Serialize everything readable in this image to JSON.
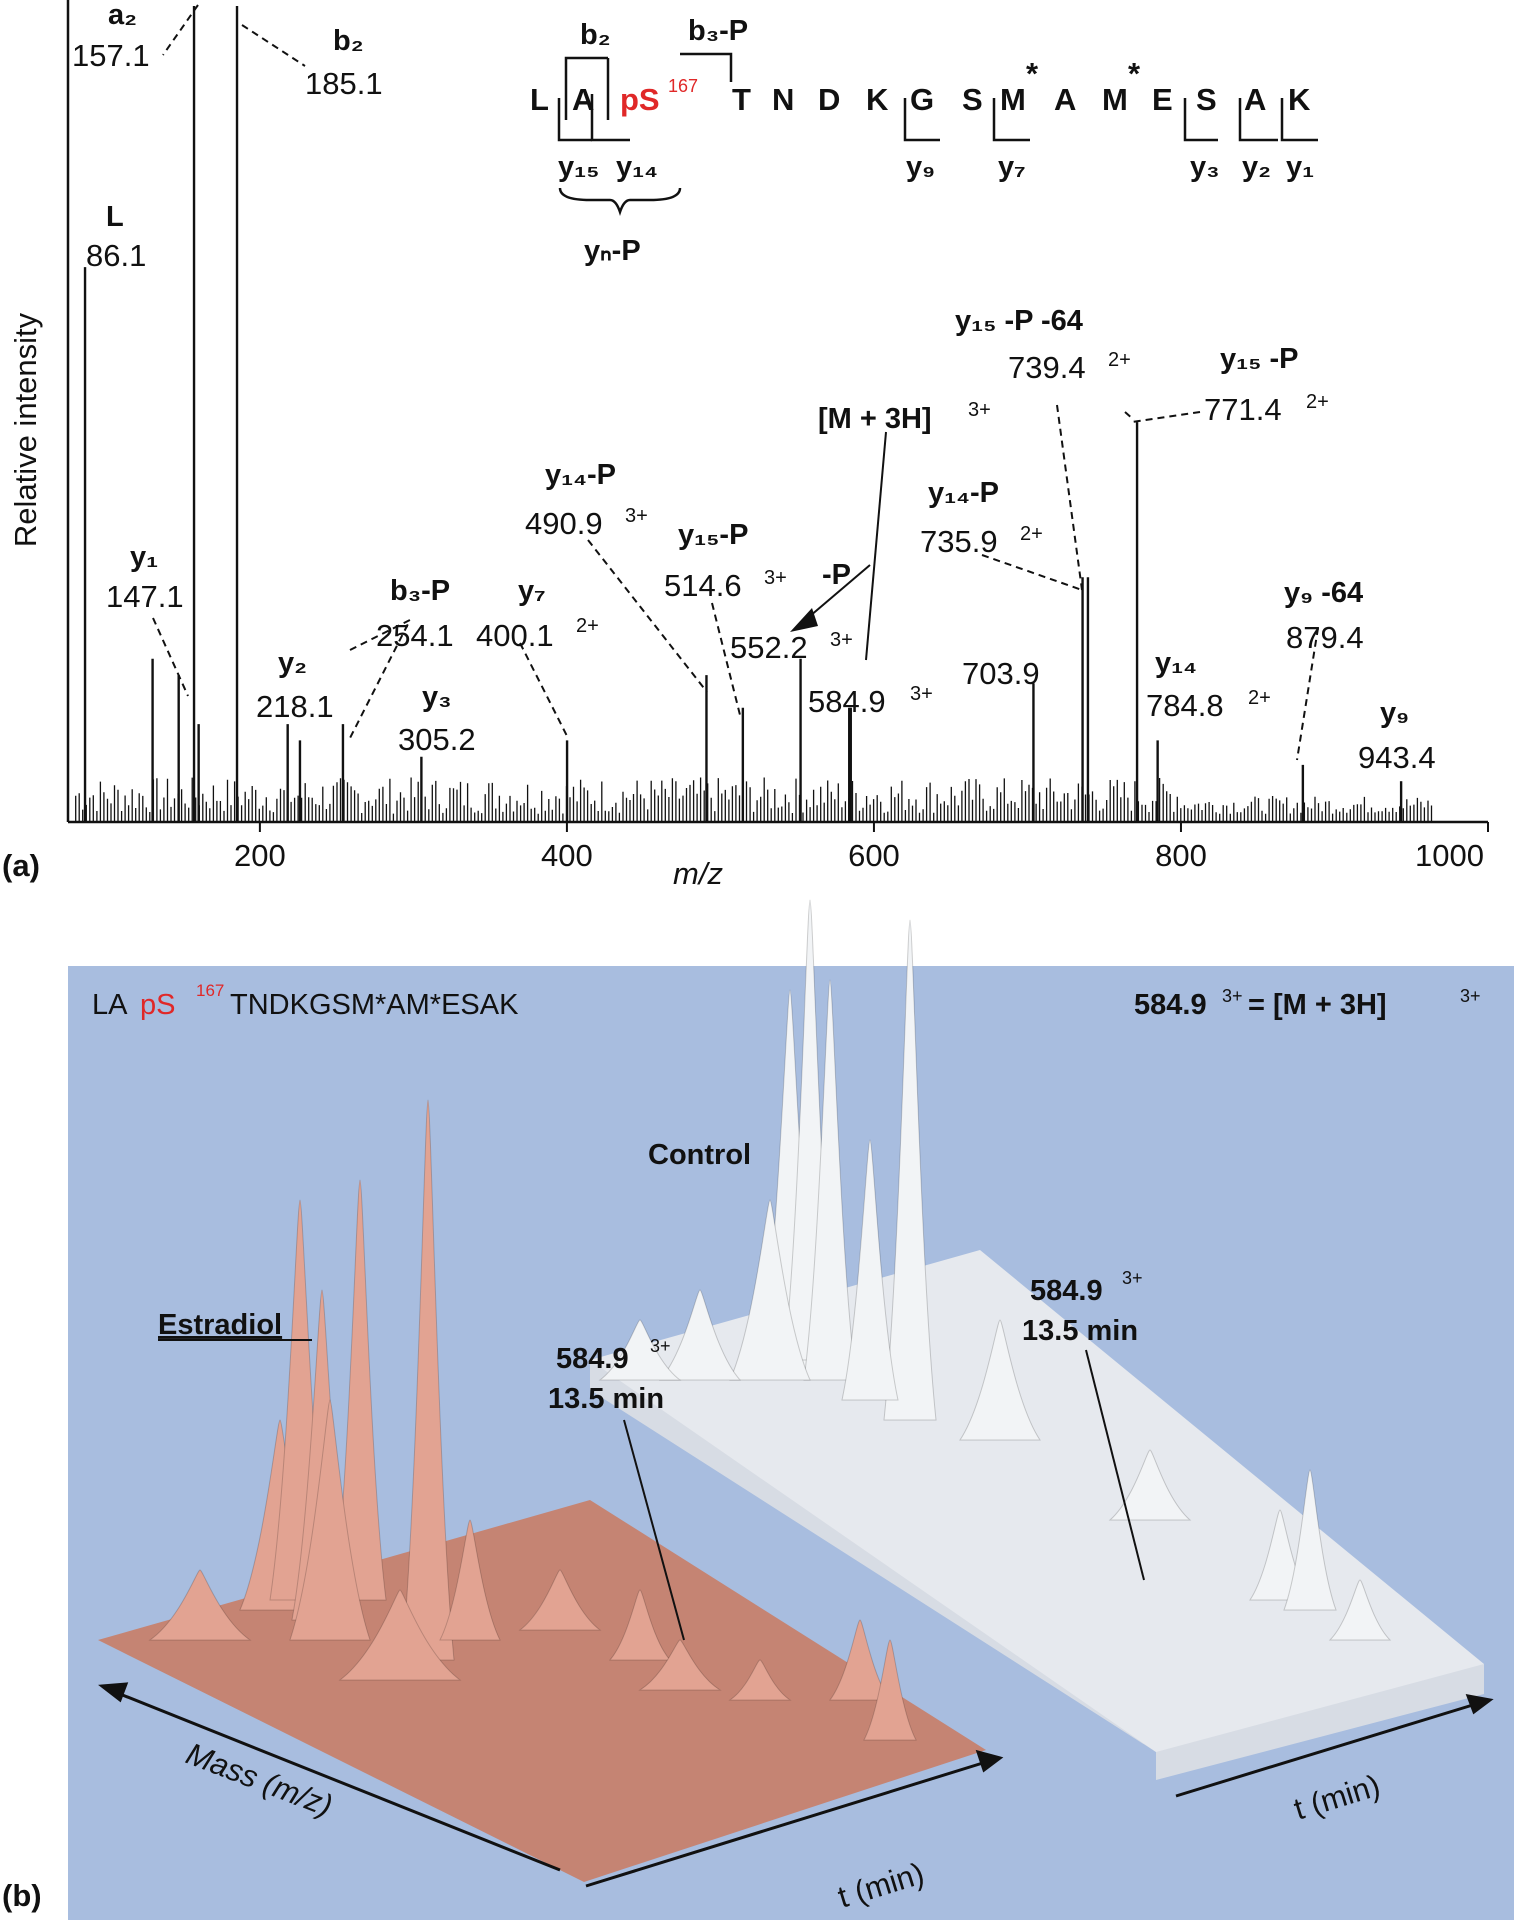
{
  "panels": [
    {
      "label": "(a)"
    },
    {
      "label": "(b)"
    }
  ],
  "chart_data": [
    {
      "type": "bar",
      "xlabel": "m/z",
      "ylabel": "Relative intensity",
      "xlim": [
        75,
        1000
      ],
      "ylim": [
        0,
        100
      ],
      "x_ticks": [
        200,
        400,
        600,
        800,
        1000
      ],
      "grid": false,
      "series": [
        {
          "values": [
            {
              "x": 86.1,
              "y": 68
            },
            {
              "x": 130.1,
              "y": 20
            },
            {
              "x": 147.1,
              "y": 18
            },
            {
              "x": 157.1,
              "y": 100
            },
            {
              "x": 160.1,
              "y": 12
            },
            {
              "x": 185.1,
              "y": 100
            },
            {
              "x": 218.1,
              "y": 12
            },
            {
              "x": 226.1,
              "y": 10
            },
            {
              "x": 254.1,
              "y": 12
            },
            {
              "x": 305.2,
              "y": 8
            },
            {
              "x": 400.1,
              "y": 10
            },
            {
              "x": 490.9,
              "y": 18
            },
            {
              "x": 514.6,
              "y": 14
            },
            {
              "x": 552.2,
              "y": 20
            },
            {
              "x": 583.9,
              "y": 14
            },
            {
              "x": 584.9,
              "y": 14
            },
            {
              "x": 703.9,
              "y": 17
            },
            {
              "x": 735.9,
              "y": 30
            },
            {
              "x": 739.4,
              "y": 30
            },
            {
              "x": 771.4,
              "y": 49
            },
            {
              "x": 784.8,
              "y": 10
            },
            {
              "x": 879.4,
              "y": 7
            },
            {
              "x": 943.4,
              "y": 5
            }
          ]
        }
      ],
      "peak_labels": [
        {
          "ion": "a₂",
          "mz": "157.1",
          "x": 157.1
        },
        {
          "ion": "b₂",
          "mz": "185.1",
          "x": 185.1
        },
        {
          "ion": "L",
          "mz": "86.1",
          "x": 86.1
        },
        {
          "ion": "y₁",
          "mz": "147.1",
          "x": 147.1
        },
        {
          "ion": "y₂",
          "mz": "218.1",
          "x": 218.1
        },
        {
          "ion": "b₃-P",
          "mz": "254.1",
          "x": 254.1
        },
        {
          "ion": "y₃",
          "mz": "305.2",
          "x": 305.2
        },
        {
          "ion": "y₇",
          "mz": "400.1",
          "charge": "2+",
          "x": 400.1
        },
        {
          "ion": "y₁₄-P",
          "mz": "490.9",
          "charge": "3+",
          "x": 490.9
        },
        {
          "ion": "y₁₅-P",
          "mz": "514.6",
          "charge": "3+",
          "x": 514.6
        },
        {
          "ion": "",
          "mz": "552.2",
          "charge": "3+",
          "x": 552.2
        },
        {
          "ion": "[M + 3H]",
          "mz": "584.9",
          "charge": "3+",
          "x": 584.9
        },
        {
          "ion": "",
          "mz": "703.9",
          "x": 703.9
        },
        {
          "ion": "y₁₄-P",
          "mz": "735.9",
          "charge": "2+",
          "x": 735.9
        },
        {
          "ion": "y₁₅ -P -64",
          "mz": "739.4",
          "charge": "2+",
          "x": 739.4
        },
        {
          "ion": "y₁₅ -P",
          "mz": "771.4",
          "charge": "2+",
          "x": 771.4
        },
        {
          "ion": "y₁₄",
          "mz": "784.8",
          "charge": "2+",
          "x": 784.8
        },
        {
          "ion": "y₉ -64",
          "mz": "879.4",
          "x": 879.4
        },
        {
          "ion": "y₉",
          "mz": "943.4",
          "x": 943.4
        }
      ],
      "annotations": {
        "neutral_loss": "-P",
        "peptide_sequence": [
          "L",
          "A",
          "pS",
          "T",
          "N",
          "D",
          "K",
          "G",
          "S",
          "M",
          "A",
          "M",
          "E",
          "S",
          "A",
          "K"
        ],
        "phospho_site": "167",
        "oxidation_mark": "*",
        "fragment_labels": [
          "b₂",
          "b₃-P",
          "y₁₅",
          "y₁₄",
          "yₙ-P",
          "y₉",
          "y₇",
          "y₃",
          "y₂",
          "y₁"
        ]
      }
    },
    {
      "type": "3d-surface",
      "title_parts": [
        "LA",
        "pS",
        "167",
        "TNDKGSM*AM*ESAK"
      ],
      "precursor_note": [
        "584.9 ",
        "3+",
        " = [M + 3H] ",
        "3+"
      ],
      "surfaces": [
        {
          "name": "Estradiol",
          "color": "#e2a392"
        },
        {
          "name": "Control",
          "color": "#f2f4f6"
        }
      ],
      "callouts": [
        {
          "mz": "584.9",
          "charge": "3+",
          "time": "13.5 min"
        },
        {
          "mz": "584.9",
          "charge": "3+",
          "time": "13.5 min"
        }
      ],
      "axis_labels": {
        "mass": "Mass (m/z)",
        "time_left": "t (min)",
        "time_right": "t (min)"
      },
      "background": "#a8bddf"
    }
  ]
}
